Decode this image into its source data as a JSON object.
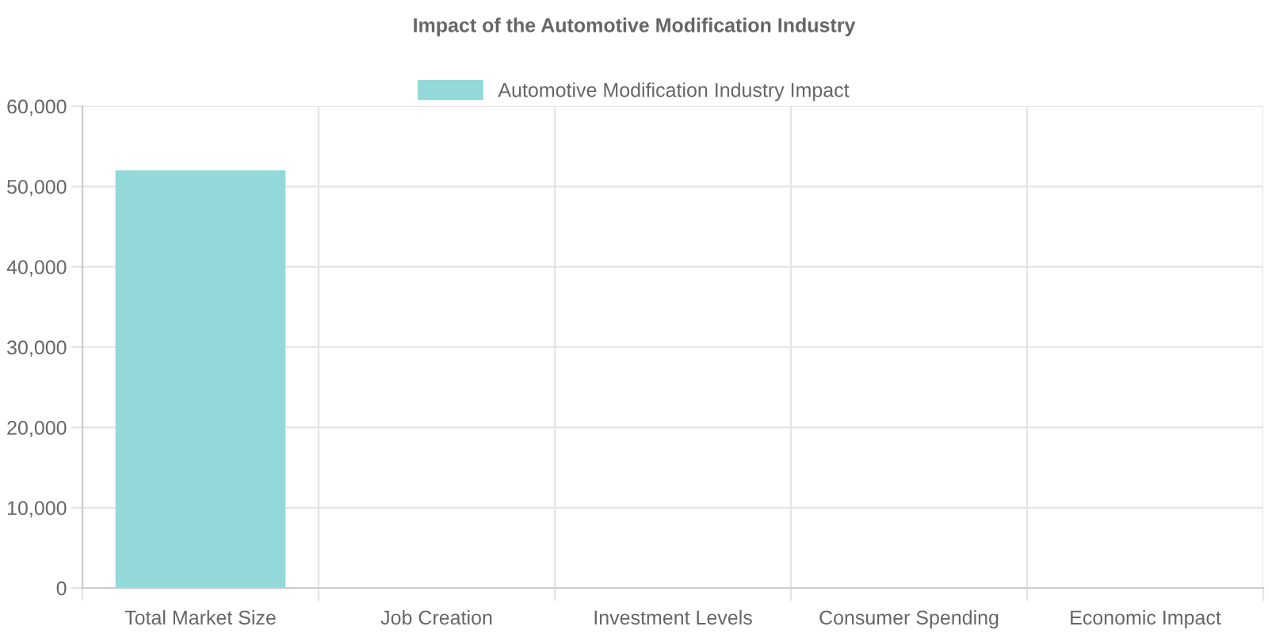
{
  "chart_data": {
    "type": "bar",
    "title": "Impact of the Automotive Modification Industry",
    "categories": [
      "Total Market Size",
      "Job Creation",
      "Investment Levels",
      "Consumer Spending",
      "Economic Impact"
    ],
    "series": [
      {
        "name": "Automotive Modification Industry Impact",
        "color": "#93d9d9",
        "values": [
          52000,
          null,
          null,
          null,
          null
        ]
      }
    ],
    "ylim": [
      0,
      60000
    ],
    "yticks": [
      {
        "value": 0,
        "label": "0"
      },
      {
        "value": 10000,
        "label": "10,000"
      },
      {
        "value": 20000,
        "label": "20,000"
      },
      {
        "value": 30000,
        "label": "30,000"
      },
      {
        "value": 40000,
        "label": "40,000"
      },
      {
        "value": 50000,
        "label": "50,000"
      },
      {
        "value": 60000,
        "label": "60,000"
      }
    ],
    "grid": true,
    "legend": "top"
  }
}
